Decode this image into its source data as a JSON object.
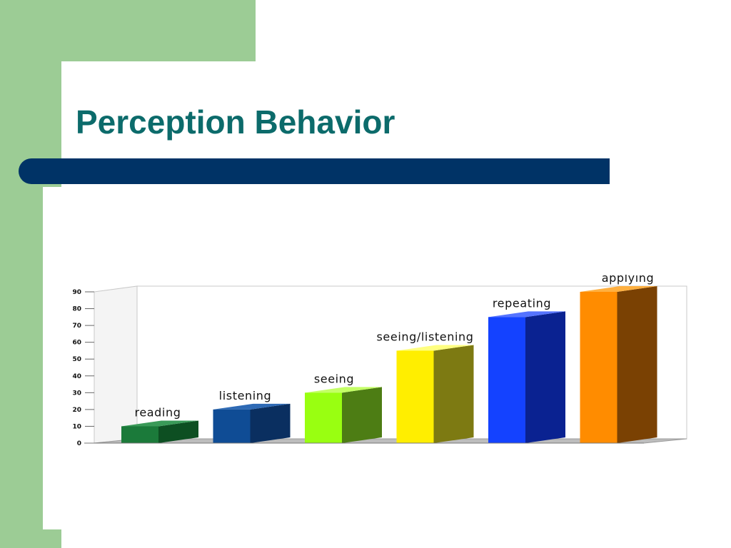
{
  "slide": {
    "title": "Perception Behavior",
    "colors": {
      "sidebar_green": "#9ccc95",
      "title_teal": "#0c6b6b",
      "rule_navy": "#003366"
    }
  },
  "chart_data": {
    "type": "bar",
    "style": "3d",
    "title": "",
    "xlabel": "",
    "ylabel": "",
    "ylim": [
      0,
      90
    ],
    "yticks": [
      "0",
      "10",
      "20",
      "30",
      "40",
      "50",
      "60",
      "70",
      "80",
      "90"
    ],
    "categories": [
      "reading",
      "listening",
      "seeing",
      "seeing/listening",
      "repeating",
      "applying"
    ],
    "values": [
      10,
      20,
      30,
      55,
      75,
      90
    ],
    "bar_colors": [
      {
        "front": "#1b7a3a",
        "side": "#0d4f22",
        "top": "#3a9a58"
      },
      {
        "front": "#0f4c95",
        "side": "#0a2f60",
        "top": "#2e6ab5"
      },
      {
        "front": "#99ff11",
        "side": "#4d7d14",
        "top": "#c4ff66"
      },
      {
        "front": "#ffee00",
        "side": "#7d7a12",
        "top": "#ffff80"
      },
      {
        "front": "#1442ff",
        "side": "#0a2291",
        "top": "#5573ff"
      },
      {
        "front": "#ff8c00",
        "side": "#7a4103",
        "top": "#ffb040"
      }
    ],
    "grid": false,
    "legend": "none"
  }
}
